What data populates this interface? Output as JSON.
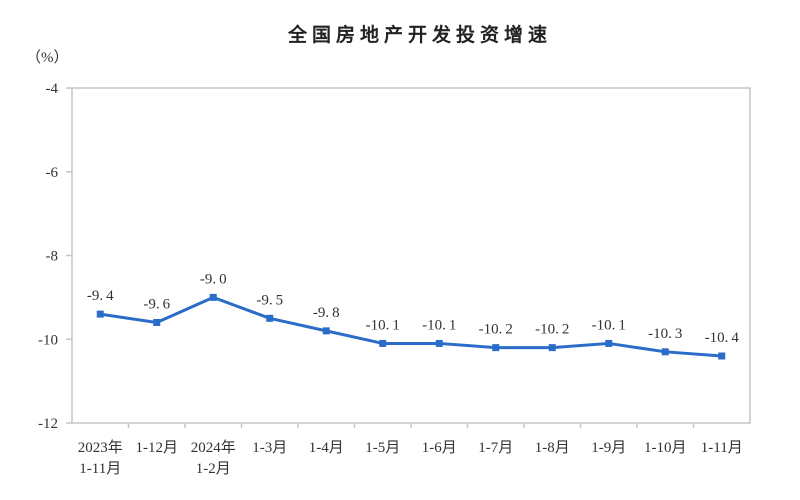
{
  "chart_data": {
    "type": "line",
    "title": "全国房地产开发投资增速",
    "unit_label": "（%）",
    "categories": [
      [
        "2023年",
        "1-11月"
      ],
      [
        "1-12月"
      ],
      [
        "2024年",
        "1-2月"
      ],
      [
        "1-3月"
      ],
      [
        "1-4月"
      ],
      [
        "1-5月"
      ],
      [
        "1-6月"
      ],
      [
        "1-7月"
      ],
      [
        "1-8月"
      ],
      [
        "1-9月"
      ],
      [
        "1-10月"
      ],
      [
        "1-11月"
      ]
    ],
    "values": [
      -9.4,
      -9.6,
      -9.0,
      -9.5,
      -9.8,
      -10.1,
      -10.1,
      -10.2,
      -10.2,
      -10.1,
      -10.3,
      -10.4
    ],
    "point_labels": [
      "-9.4",
      "-9.6",
      "-9.0",
      "-9.5",
      "-9.8",
      "-10.1",
      "-10.1",
      "-10.2",
      "-10.2",
      "-10.1",
      "-10.3",
      "-10.4"
    ],
    "xlabel": "",
    "ylabel": "（%）",
    "ylim": [
      -12,
      -4
    ],
    "yticks": [
      -4,
      -6,
      -8,
      -10,
      -12
    ],
    "grid": false,
    "legend_position": "none",
    "line_color": "#2b6cc8",
    "axis_color": "#c6c6c6",
    "text_color": "#333333"
  }
}
